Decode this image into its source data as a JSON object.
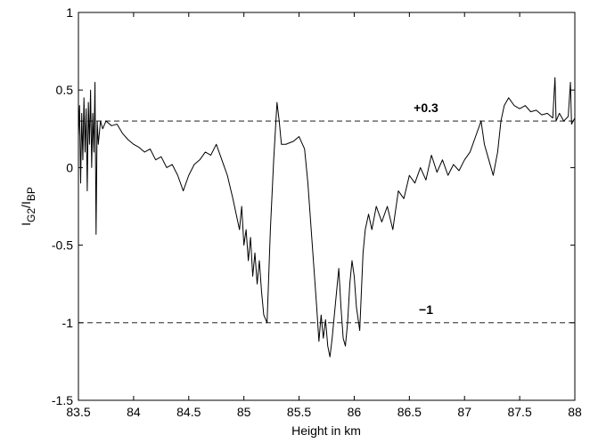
{
  "chart_data": {
    "type": "line",
    "xlabel": "Height in km",
    "ylabel": [
      {
        "text": "I"
      },
      {
        "text": "G2",
        "subscript": true
      },
      {
        "text": "/I"
      },
      {
        "text": "BP",
        "subscript": true
      }
    ],
    "xlim": [
      83.5,
      88
    ],
    "xticks": [
      83.5,
      84,
      84.5,
      85,
      85.5,
      86,
      86.5,
      87,
      87.5,
      88
    ],
    "ylim": [
      -1.5,
      1
    ],
    "yticks": [
      1,
      0.5,
      0,
      -0.5,
      -1,
      -1.5
    ],
    "hlines": [
      {
        "value": 0.3,
        "label": "+0.3"
      },
      {
        "value": -1,
        "label": "−1"
      }
    ],
    "series": [
      {
        "color": "#000000",
        "x": [
          83.5,
          83.51,
          83.52,
          83.53,
          83.54,
          83.55,
          83.56,
          83.57,
          83.58,
          83.59,
          83.6,
          83.61,
          83.62,
          83.63,
          83.64,
          83.65,
          83.66,
          83.67,
          83.68,
          83.7,
          83.72,
          83.75,
          83.8,
          83.85,
          83.9,
          83.95,
          84.0,
          84.05,
          84.1,
          84.15,
          84.2,
          84.25,
          84.3,
          84.35,
          84.4,
          84.45,
          84.5,
          84.55,
          84.6,
          84.65,
          84.7,
          84.75,
          84.8,
          84.85,
          84.9,
          84.93,
          84.96,
          84.98,
          85.0,
          85.02,
          85.04,
          85.06,
          85.08,
          85.1,
          85.12,
          85.14,
          85.16,
          85.18,
          85.21,
          85.24,
          85.27,
          85.3,
          85.32,
          85.34,
          85.38,
          85.45,
          85.5,
          85.55,
          85.58,
          85.62,
          85.66,
          85.68,
          85.7,
          85.72,
          85.74,
          85.76,
          85.78,
          85.8,
          85.82,
          85.84,
          85.86,
          85.88,
          85.9,
          85.92,
          85.94,
          85.96,
          85.98,
          86.0,
          86.02,
          86.05,
          86.08,
          86.1,
          86.13,
          86.16,
          86.2,
          86.25,
          86.3,
          86.35,
          86.4,
          86.45,
          86.5,
          86.55,
          86.6,
          86.65,
          86.7,
          86.75,
          86.8,
          86.85,
          86.9,
          86.95,
          87.0,
          87.05,
          87.1,
          87.15,
          87.18,
          87.22,
          87.26,
          87.3,
          87.33,
          87.36,
          87.4,
          87.45,
          87.5,
          87.55,
          87.6,
          87.65,
          87.7,
          87.75,
          87.8,
          87.82,
          87.83,
          87.86,
          87.9,
          87.94,
          87.96,
          87.97,
          88.0
        ],
        "values": [
          0.2,
          0.4,
          -0.1,
          0.35,
          0.05,
          0.45,
          0.1,
          0.38,
          -0.15,
          0.42,
          0.15,
          0.5,
          0.0,
          0.35,
          0.1,
          0.55,
          -0.43,
          0.3,
          0.15,
          0.3,
          0.25,
          0.3,
          0.27,
          0.28,
          0.22,
          0.18,
          0.15,
          0.13,
          0.1,
          0.12,
          0.05,
          0.07,
          0.0,
          0.02,
          -0.05,
          -0.15,
          -0.05,
          0.02,
          0.05,
          0.1,
          0.08,
          0.15,
          0.05,
          -0.05,
          -0.2,
          -0.3,
          -0.4,
          -0.25,
          -0.5,
          -0.4,
          -0.6,
          -0.45,
          -0.7,
          -0.55,
          -0.75,
          -0.6,
          -0.8,
          -0.95,
          -1.0,
          -0.4,
          0.05,
          0.42,
          0.3,
          0.15,
          0.15,
          0.17,
          0.2,
          0.12,
          -0.1,
          -0.5,
          -0.9,
          -1.12,
          -0.95,
          -1.1,
          -0.98,
          -1.15,
          -1.22,
          -1.1,
          -0.95,
          -0.8,
          -0.65,
          -0.9,
          -1.1,
          -1.15,
          -1.0,
          -0.75,
          -0.6,
          -0.7,
          -0.9,
          -1.05,
          -0.55,
          -0.4,
          -0.3,
          -0.4,
          -0.25,
          -0.35,
          -0.25,
          -0.4,
          -0.15,
          -0.2,
          -0.05,
          -0.1,
          0.0,
          -0.08,
          0.08,
          -0.03,
          0.05,
          -0.05,
          0.02,
          -0.02,
          0.05,
          0.1,
          0.2,
          0.3,
          0.15,
          0.05,
          -0.05,
          0.1,
          0.3,
          0.4,
          0.45,
          0.4,
          0.38,
          0.4,
          0.36,
          0.37,
          0.34,
          0.35,
          0.32,
          0.58,
          0.3,
          0.35,
          0.3,
          0.33,
          0.55,
          0.28,
          0.32
        ]
      }
    ]
  }
}
